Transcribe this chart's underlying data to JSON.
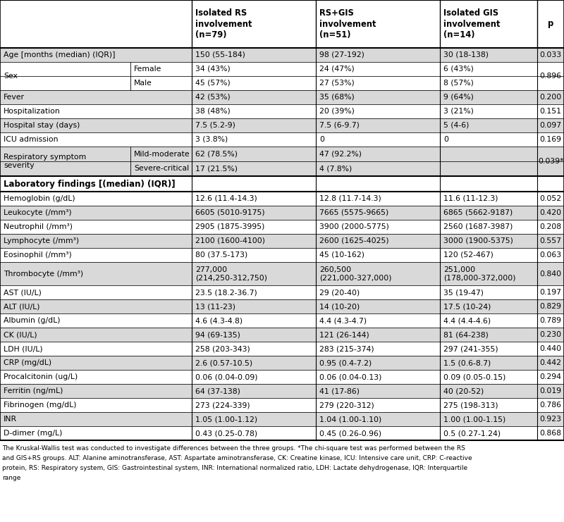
{
  "rows": [
    {
      "label": "Age [months (median) (IQR)]",
      "sublabel": "",
      "col1": "150 (55-184)",
      "col2": "98 (27-192)",
      "col3": "30 (18-138)",
      "p": "0.033",
      "shade": true,
      "type": "data",
      "rowspan": 1
    },
    {
      "label": "Sex",
      "sublabel": "Female",
      "col1": "34 (43%)",
      "col2": "24 (47%)",
      "col3": "6 (43%)",
      "p": "0.896",
      "shade": false,
      "type": "data",
      "rowspan": 2
    },
    {
      "label": "",
      "sublabel": "Male",
      "col1": "45 (57%)",
      "col2": "27 (53%)",
      "col3": "8 (57%)",
      "p": "",
      "shade": false,
      "type": "data",
      "rowspan": 1
    },
    {
      "label": "Fever",
      "sublabel": "",
      "col1": "42 (53%)",
      "col2": "35 (68%)",
      "col3": "9 (64%)",
      "p": "0.200",
      "shade": true,
      "type": "data",
      "rowspan": 1
    },
    {
      "label": "Hospitalization",
      "sublabel": "",
      "col1": "38 (48%)",
      "col2": "20 (39%)",
      "col3": "3 (21%)",
      "p": "0.151",
      "shade": false,
      "type": "data",
      "rowspan": 1
    },
    {
      "label": "Hospital stay (days)",
      "sublabel": "",
      "col1": "7.5 (5.2-9)",
      "col2": "7.5 (6-9.7)",
      "col3": "5 (4-6)",
      "p": "0.097",
      "shade": true,
      "type": "data",
      "rowspan": 1
    },
    {
      "label": "ICU admission",
      "sublabel": "",
      "col1": "3 (3.8%)",
      "col2": "0",
      "col3": "0",
      "p": "0.169",
      "shade": false,
      "type": "data",
      "rowspan": 1
    },
    {
      "label": "Respiratory symptom\nseverity",
      "sublabel": "Mild-moderate",
      "col1": "62 (78.5%)",
      "col2": "47 (92.2%)",
      "col3": "",
      "p": "0.039*",
      "shade": true,
      "type": "data",
      "rowspan": 2
    },
    {
      "label": "",
      "sublabel": "Severe-critical",
      "col1": "17 (21.5%)",
      "col2": "4 (7.8%)",
      "col3": "",
      "p": "",
      "shade": true,
      "type": "data",
      "rowspan": 1
    },
    {
      "label": "Laboratory findings [(median) (IQR)]",
      "sublabel": "",
      "col1": "",
      "col2": "",
      "col3": "",
      "p": "",
      "shade": false,
      "type": "header",
      "rowspan": 1
    },
    {
      "label": "Hemoglobin (g/dL)",
      "sublabel": "",
      "col1": "12.6 (11.4-14.3)",
      "col2": "12.8 (11.7-14.3)",
      "col3": "11.6 (11-12.3)",
      "p": "0.052",
      "shade": false,
      "type": "data",
      "rowspan": 1
    },
    {
      "label": "Leukocyte (/mm³)",
      "sublabel": "",
      "col1": "6605 (5010-9175)",
      "col2": "7665 (5575-9665)",
      "col3": "6865 (5662-9187)",
      "p": "0.420",
      "shade": true,
      "type": "data",
      "rowspan": 1
    },
    {
      "label": "Neutrophil (/mm³)",
      "sublabel": "",
      "col1": "2905 (1875-3995)",
      "col2": "3900 (2000-5775)",
      "col3": "2560 (1687-3987)",
      "p": "0.208",
      "shade": false,
      "type": "data",
      "rowspan": 1
    },
    {
      "label": "Lymphocyte (/mm³)",
      "sublabel": "",
      "col1": "2100 (1600-4100)",
      "col2": "2600 (1625-4025)",
      "col3": "3000 (1900-5375)",
      "p": "0.557",
      "shade": true,
      "type": "data",
      "rowspan": 1
    },
    {
      "label": "Eosinophil (/mm³)",
      "sublabel": "",
      "col1": "80 (37.5-173)",
      "col2": "45 (10-162)",
      "col3": "120 (52-467)",
      "p": "0.063",
      "shade": false,
      "type": "data",
      "rowspan": 1
    },
    {
      "label": "Thrombocyte (/mm³)",
      "sublabel": "",
      "col1": "277,000\n(214,250-312,750)",
      "col2": "260,500\n(221,000-327,000)",
      "col3": "251,000\n(178,000-372,000)",
      "p": "0.840",
      "shade": true,
      "type": "data",
      "rowspan": 1,
      "tall": true
    },
    {
      "label": "AST (IU/L)",
      "sublabel": "",
      "col1": "23.5 (18.2-36.7)",
      "col2": "29 (20-40)",
      "col3": "35 (19-47)",
      "p": "0.197",
      "shade": false,
      "type": "data",
      "rowspan": 1
    },
    {
      "label": "ALT (IU/L)",
      "sublabel": "",
      "col1": "13 (11-23)",
      "col2": "14 (10-20)",
      "col3": "17.5 (10-24)",
      "p": "0.829",
      "shade": true,
      "type": "data",
      "rowspan": 1
    },
    {
      "label": "Albumin (g/dL)",
      "sublabel": "",
      "col1": "4.6 (4.3-4.8)",
      "col2": "4.4 (4.3-4.7)",
      "col3": "4.4 (4.4-4.6)",
      "p": "0.789",
      "shade": false,
      "type": "data",
      "rowspan": 1
    },
    {
      "label": "CK (IU/L)",
      "sublabel": "",
      "col1": "94 (69-135)",
      "col2": "121 (26-144)",
      "col3": "81 (64-238)",
      "p": "0.230",
      "shade": true,
      "type": "data",
      "rowspan": 1
    },
    {
      "label": "LDH (IU/L)",
      "sublabel": "",
      "col1": "258 (203-343)",
      "col2": "283 (215-374)",
      "col3": "297 (241-355)",
      "p": "0.440",
      "shade": false,
      "type": "data",
      "rowspan": 1
    },
    {
      "label": "CRP (mg/dL)",
      "sublabel": "",
      "col1": "2.6 (0.57-10.5)",
      "col2": "0.95 (0.4-7.2)",
      "col3": "1.5 (0.6-8.7)",
      "p": "0.442",
      "shade": true,
      "type": "data",
      "rowspan": 1
    },
    {
      "label": "Procalcitonin (ug/L)",
      "sublabel": "",
      "col1": "0.06 (0.04-0.09)",
      "col2": "0.06 (0.04-0.13)",
      "col3": "0.09 (0.05-0.15)",
      "p": "0.294",
      "shade": false,
      "type": "data",
      "rowspan": 1
    },
    {
      "label": "Ferritin (ng/mL)",
      "sublabel": "",
      "col1": "64 (37-138)",
      "col2": "41 (17-86)",
      "col3": "40 (20-52)",
      "p": "0.019",
      "shade": true,
      "type": "data",
      "rowspan": 1
    },
    {
      "label": "Fibrinogen (mg/dL)",
      "sublabel": "",
      "col1": "273 (224-339)",
      "col2": "279 (220-312)",
      "col3": "275 (198-313)",
      "p": "0.786",
      "shade": false,
      "type": "data",
      "rowspan": 1
    },
    {
      "label": "INR",
      "sublabel": "",
      "col1": "1.05 (1.00-1.12)",
      "col2": "1.04 (1.00-1.10)",
      "col3": "1.00 (1.00-1.15)",
      "p": "0.923",
      "shade": true,
      "type": "data",
      "rowspan": 1
    },
    {
      "label": "D-dimer (mg/L)",
      "sublabel": "",
      "col1": "0.43 (0.25-0.78)",
      "col2": "0.45 (0.26-0.96)",
      "col3": "0.5 (0.27-1.24)",
      "p": "0.868",
      "shade": false,
      "type": "data",
      "rowspan": 1
    }
  ],
  "shade_color": "#d9d9d9",
  "footer_lines": [
    "The Kruskal-Wallis test was conducted to investigate differences between the three groups. *The chi-square test was performed between the RS",
    "and GIS+RS groups. ALT: Alanine aminotransferase, AST: Aspartate aminotransferase, CK: Creatine kinase, ICU: Intensive care unit, CRP: C-reactive",
    "protein, RS: Respiratory system, GIS: Gastrointestinal system, INR: International normalized ratio, LDH: Lactate dehydrogenase, IQR: Interquartile",
    "range"
  ]
}
